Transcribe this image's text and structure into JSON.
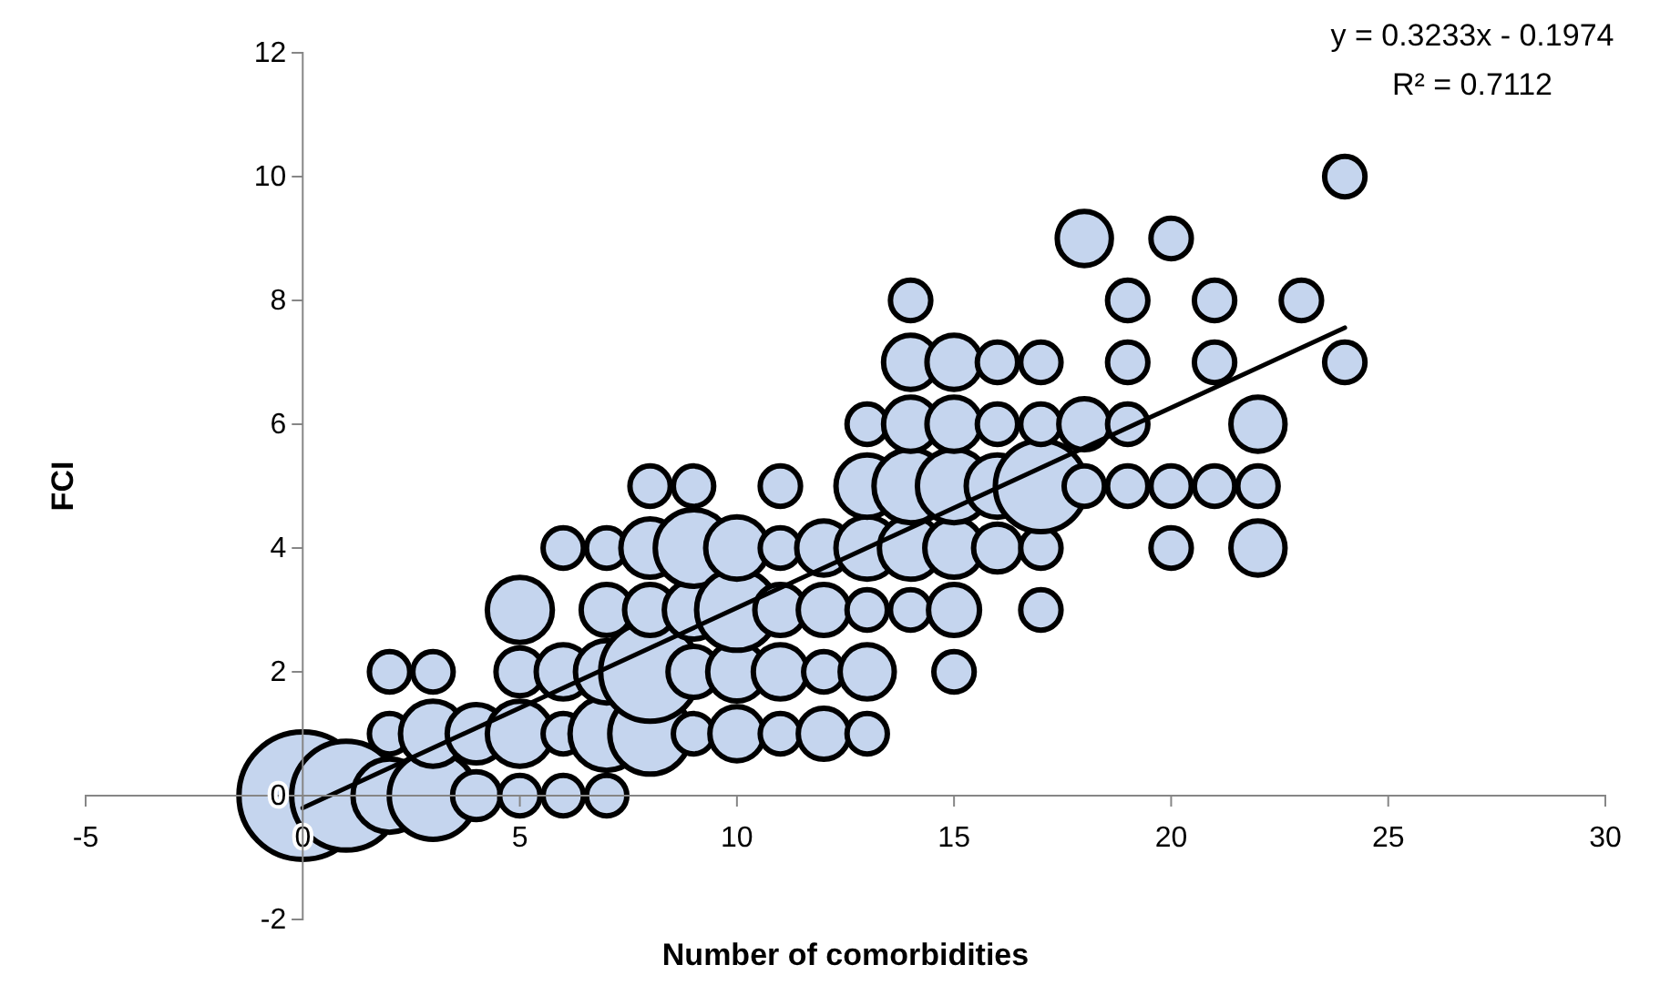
{
  "chart_data": {
    "type": "bubble",
    "xlabel": "Number of comorbidities",
    "ylabel": "FCI",
    "xlim": [
      -5,
      30
    ],
    "xticks": [
      -5,
      0,
      5,
      10,
      15,
      20,
      25,
      30
    ],
    "ylim": [
      -2,
      12
    ],
    "yticks": [
      -2,
      0,
      2,
      4,
      6,
      8,
      10,
      12
    ],
    "grid": false,
    "annotations": [
      "y = 0.3233x - 0.1974",
      "R² = 0.7112"
    ],
    "series": [
      {
        "color": "#c5d5ee",
        "x": [
          0,
          1,
          2,
          2,
          2,
          3,
          3,
          3,
          4,
          4,
          5,
          5,
          5,
          5,
          6,
          6,
          6,
          6,
          7,
          7,
          7,
          7,
          7,
          8,
          8,
          8,
          8,
          8,
          9,
          9,
          9,
          9,
          9,
          10,
          10,
          10,
          10,
          11,
          11,
          11,
          11,
          11,
          12,
          12,
          12,
          12,
          13,
          13,
          13,
          13,
          13,
          13,
          14,
          14,
          14,
          14,
          14,
          14,
          15,
          15,
          15,
          15,
          15,
          15,
          16,
          16,
          16,
          16,
          17,
          17,
          17,
          17,
          17,
          18,
          18,
          18,
          19,
          19,
          19,
          19,
          20,
          20,
          20,
          21,
          21,
          21,
          22,
          22,
          22,
          23,
          24,
          24
        ],
        "values": [
          0,
          0,
          0,
          1,
          2,
          0,
          1,
          2,
          0,
          1,
          0,
          1,
          2,
          3,
          0,
          1,
          2,
          4,
          0,
          1,
          2,
          3,
          4,
          1,
          2,
          3,
          4,
          5,
          1,
          2,
          3,
          4,
          5,
          1,
          2,
          3,
          4,
          1,
          2,
          3,
          4,
          5,
          1,
          2,
          3,
          4,
          1,
          2,
          3,
          4,
          5,
          6,
          3,
          4,
          5,
          6,
          7,
          8,
          2,
          3,
          4,
          5,
          6,
          7,
          4,
          5,
          6,
          7,
          3,
          4,
          5,
          6,
          7,
          5,
          6,
          9,
          5,
          6,
          7,
          8,
          4,
          5,
          9,
          5,
          7,
          8,
          4,
          5,
          6,
          8,
          7,
          10
        ],
        "sizes": [
          1,
          0.73,
          0.33,
          0.1,
          0.1,
          0.47,
          0.26,
          0.1,
          0.14,
          0.21,
          0.1,
          0.26,
          0.14,
          0.26,
          0.1,
          0.1,
          0.18,
          0.1,
          0.1,
          0.33,
          0.24,
          0.16,
          0.1,
          0.4,
          0.6,
          0.16,
          0.21,
          0.1,
          0.1,
          0.16,
          0.21,
          0.36,
          0.1,
          0.18,
          0.21,
          0.4,
          0.24,
          0.1,
          0.18,
          0.16,
          0.1,
          0.1,
          0.16,
          0.1,
          0.16,
          0.18,
          0.1,
          0.18,
          0.1,
          0.24,
          0.24,
          0.1,
          0.1,
          0.24,
          0.33,
          0.18,
          0.18,
          0.1,
          0.1,
          0.16,
          0.21,
          0.33,
          0.18,
          0.18,
          0.14,
          0.24,
          0.1,
          0.1,
          0.1,
          0.1,
          0.51,
          0.1,
          0.1,
          0.1,
          0.16,
          0.18,
          0.1,
          0.1,
          0.1,
          0.1,
          0.1,
          0.1,
          0.1,
          0.1,
          0.1,
          0.1,
          0.18,
          0.1,
          0.18,
          0.1,
          0.1,
          0.1
        ]
      },
      {
        "type": "line",
        "color": "#000000",
        "x": [
          0,
          24
        ],
        "values": [
          -0.2,
          7.56
        ]
      }
    ]
  }
}
